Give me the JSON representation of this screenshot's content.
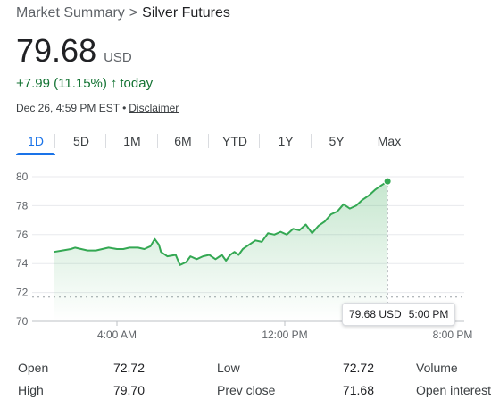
{
  "breadcrumb": {
    "root": "Market Summary",
    "separator": ">",
    "current": "Silver Futures"
  },
  "quote": {
    "price": "79.68",
    "currency": "USD",
    "change": "+7.99 (11.15%)",
    "change_arrow": "↑",
    "change_period": "today",
    "timestamp": "Dec 26, 4:59 PM EST",
    "dot": "•",
    "disclaimer": "Disclaimer"
  },
  "tabs": [
    {
      "label": "1D",
      "active": true
    },
    {
      "label": "5D"
    },
    {
      "label": "1M"
    },
    {
      "label": "6M"
    },
    {
      "label": "YTD"
    },
    {
      "label": "1Y"
    },
    {
      "label": "5Y"
    },
    {
      "label": "Max"
    }
  ],
  "chart_data": {
    "type": "area",
    "y_ticks": [
      "80",
      "78",
      "76",
      "74",
      "72",
      "70"
    ],
    "x_ticks": [
      "4:00 AM",
      "12:00 PM",
      "8:00 PM"
    ],
    "ylim": [
      70,
      80
    ],
    "previous_close": 71.68,
    "x_unit": "hours since midnight",
    "x": [
      1.0,
      1.4,
      1.8,
      2.0,
      2.3,
      2.6,
      3.0,
      3.3,
      3.6,
      4.0,
      4.3,
      4.6,
      5.0,
      5.3,
      5.6,
      5.8,
      6.0,
      6.1,
      6.4,
      6.8,
      7.0,
      7.3,
      7.5,
      7.8,
      8.1,
      8.4,
      8.7,
      9.0,
      9.2,
      9.4,
      9.6,
      9.8,
      10.0,
      10.3,
      10.6,
      10.9,
      11.2,
      11.5,
      11.8,
      12.1,
      12.4,
      12.7,
      13.0,
      13.3,
      13.6,
      13.9,
      14.2,
      14.5,
      14.8,
      15.1,
      15.4,
      15.7,
      16.0,
      16.3,
      16.6,
      16.9
    ],
    "y": [
      74.8,
      74.9,
      75.0,
      75.1,
      75.0,
      74.9,
      74.9,
      75.0,
      75.1,
      75.0,
      75.0,
      75.1,
      75.1,
      75.0,
      75.2,
      75.7,
      75.3,
      74.8,
      74.5,
      74.6,
      73.9,
      74.1,
      74.5,
      74.3,
      74.5,
      74.6,
      74.3,
      74.6,
      74.2,
      74.6,
      74.8,
      74.6,
      75.0,
      75.3,
      75.6,
      75.5,
      76.1,
      76.0,
      76.2,
      76.0,
      76.4,
      76.3,
      76.7,
      76.1,
      76.6,
      76.9,
      77.4,
      77.6,
      78.1,
      77.8,
      78.0,
      78.4,
      78.7,
      79.1,
      79.4,
      79.68
    ],
    "tooltip": {
      "value": "79.68 USD",
      "time": "5:00 PM"
    },
    "colors": {
      "line": "#34a853",
      "fill_top": "#34a853",
      "grid": "#e8eaed",
      "prev_close": "#9aa0a6"
    },
    "grid": true
  },
  "stats": [
    {
      "label": "Open",
      "value": "72.72"
    },
    {
      "label": "High",
      "value": "79.70"
    },
    {
      "label": "Low",
      "value": "72.72"
    },
    {
      "label": "Prev close",
      "value": "71.68"
    },
    {
      "label": "Volume",
      "value": ""
    },
    {
      "label": "Open interest",
      "value": ""
    }
  ]
}
